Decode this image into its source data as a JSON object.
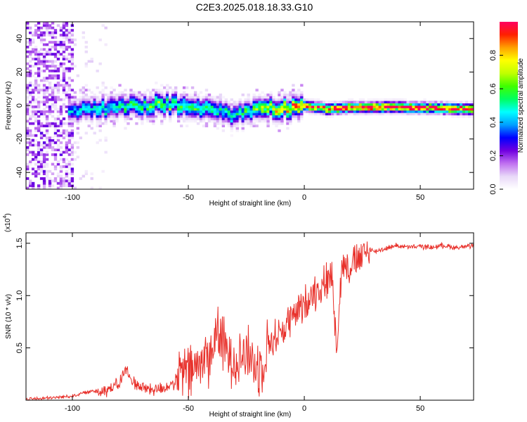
{
  "title": "C2E3.2025.018.18.33.G10",
  "chart_data": [
    {
      "type": "heatmap",
      "xlabel": "Height of straight line (km)",
      "ylabel": "Frequency (Hz)",
      "xlim": [
        -120,
        73
      ],
      "ylim": [
        -50,
        50
      ],
      "xticks": [
        -100,
        -50,
        0,
        50
      ],
      "yticks": [
        -40,
        -20,
        0,
        20,
        40
      ],
      "colorbar": {
        "label": "Normalized spectral amplitude",
        "ticks": [
          "0.0",
          "0.2",
          "0.4",
          "0.6",
          "0.8"
        ],
        "range": [
          0,
          1
        ],
        "colors": [
          "#ffffff",
          "#e8d8f8",
          "#c070f0",
          "#7000e0",
          "#0000ff",
          "#00a0ff",
          "#00ffff",
          "#00ff60",
          "#40ff00",
          "#c0ff00",
          "#ffff00",
          "#ffa000",
          "#ff2000",
          "#ff0060"
        ]
      },
      "ridge": {
        "x": [
          -100,
          -90,
          -80,
          -70,
          -60,
          -50,
          -40,
          -30,
          -20,
          -10,
          0,
          10,
          20,
          40,
          73
        ],
        "freq": [
          -3,
          -2,
          -1,
          0,
          1,
          0,
          -3,
          -6,
          -1,
          -2,
          0,
          -2,
          -1,
          -1,
          -2
        ],
        "amplitude": [
          0.4,
          0.45,
          0.5,
          0.55,
          0.6,
          0.55,
          0.5,
          0.45,
          0.6,
          0.75,
          0.85,
          0.9,
          0.9,
          0.95,
          0.95
        ]
      },
      "noise_region_x": [
        -120,
        -100
      ]
    },
    {
      "type": "line",
      "xlabel": "Height of straight line (km)",
      "ylabel": "SNR (10 * v/v)",
      "scale_label": "(x10",
      "scale_exp": "4",
      "xlim": [
        -120,
        73
      ],
      "ylim": [
        0,
        1.6
      ],
      "xticks": [
        -100,
        -50,
        0,
        50
      ],
      "yticks": [
        0.5,
        1.0,
        1.5
      ],
      "ytick_labels": [
        "0.5",
        "1.0",
        "1.5"
      ],
      "series": [
        {
          "color": "#e8302a",
          "x": [
            -120,
            -110,
            -100,
            -95,
            -90,
            -85,
            -80,
            -77,
            -75,
            -70,
            -65,
            -60,
            -55,
            -52,
            -50,
            -45,
            -40,
            -37,
            -35,
            -30,
            -25,
            -20,
            -15,
            -10,
            -5,
            0,
            2,
            5,
            8,
            10,
            12,
            14,
            16,
            18,
            20,
            25,
            28,
            30,
            35,
            40,
            45,
            50,
            55,
            60,
            65,
            73
          ],
          "y": [
            0.01,
            0.02,
            0.04,
            0.07,
            0.09,
            0.1,
            0.15,
            0.3,
            0.2,
            0.12,
            0.1,
            0.12,
            0.18,
            0.3,
            0.25,
            0.35,
            0.45,
            0.7,
            0.5,
            0.4,
            0.45,
            0.3,
            0.55,
            0.65,
            0.8,
            0.9,
            1.0,
            1.05,
            1.1,
            1.15,
            1.2,
            0.5,
            1.25,
            1.3,
            1.3,
            1.35,
            1.45,
            1.42,
            1.45,
            1.48,
            1.46,
            1.47,
            1.46,
            1.48,
            1.46,
            1.47
          ]
        }
      ]
    }
  ]
}
